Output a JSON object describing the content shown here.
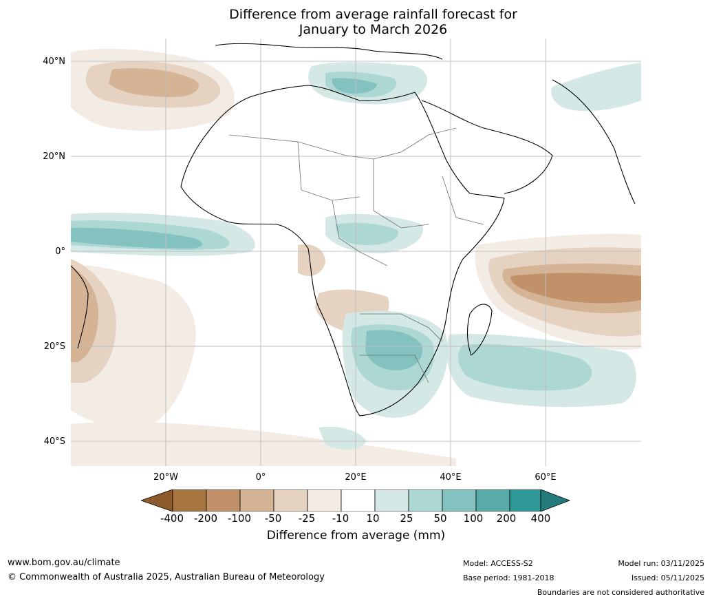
{
  "title_line1": "Difference from average rainfall forecast for",
  "title_line2": "January to March 2026",
  "lat_labels": [
    "40°N",
    "20°N",
    "0°",
    "20°S",
    "40°S"
  ],
  "lon_labels": [
    "20°W",
    "0°",
    "20°E",
    "40°E",
    "60°E"
  ],
  "colorbar": {
    "ticks": [
      "-400",
      "-200",
      "-100",
      "-50",
      "-25",
      "-10",
      "10",
      "25",
      "50",
      "100",
      "200",
      "400"
    ],
    "colors": [
      "#8c5a2b",
      "#a9753f",
      "#c19269",
      "#d5b395",
      "#e6d2c1",
      "#f3ece4",
      "#ffffff",
      "#d4e9e6",
      "#acd7d3",
      "#84c2c0",
      "#5aaaa9",
      "#2e9897",
      "#257b7b"
    ],
    "label": "Difference from average (mm)"
  },
  "footer": {
    "website": "www.bom.gov.au/climate",
    "copyright": "© Commonwealth of Australia 2025, Australian Bureau of Meteorology",
    "model": "Model: ACCESS-S2",
    "base_period": "Base period: 1981-2018",
    "model_run": "Model run: 03/11/2025",
    "issued": "Issued: 05/11/2025",
    "boundaries": "Boundaries are not considered authoritative"
  }
}
